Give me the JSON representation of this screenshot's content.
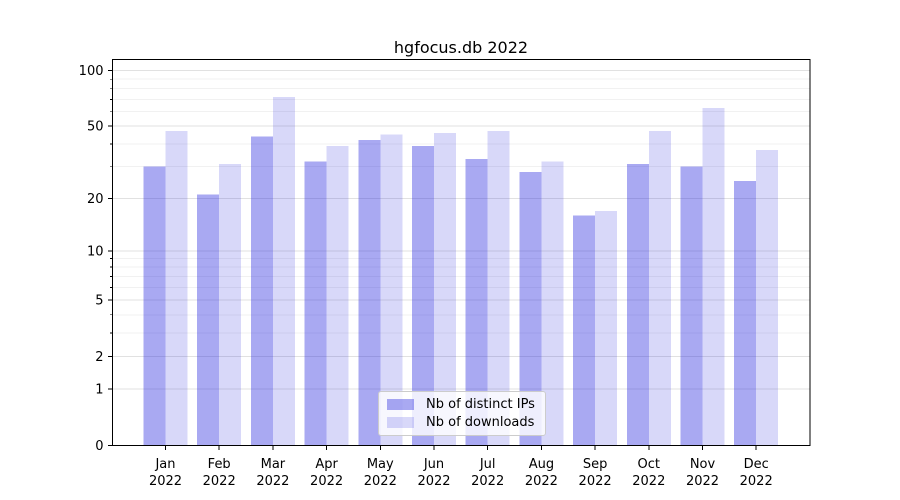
{
  "chart_data": {
    "type": "bar",
    "title": "hgfocus.db 2022",
    "categories": [
      "Jan",
      "Feb",
      "Mar",
      "Apr",
      "May",
      "Jun",
      "Jul",
      "Aug",
      "Sep",
      "Oct",
      "Nov",
      "Dec"
    ],
    "x_year_label": "2022",
    "series": [
      {
        "name": "Nb of distinct IPs",
        "color": "rgba(40,40,222,0.40)",
        "values": [
          30,
          21,
          44,
          32,
          42,
          39,
          33,
          28,
          16,
          31,
          30,
          25
        ]
      },
      {
        "name": "Nb of downloads",
        "color": "rgba(40,40,222,0.18)",
        "values": [
          47,
          31,
          72,
          39,
          45,
          46,
          47,
          32,
          17,
          47,
          63,
          37
        ]
      }
    ],
    "yscale": "log1p",
    "ylim": [
      0,
      115
    ],
    "yticks": [
      0,
      1,
      2,
      5,
      10,
      20,
      50,
      100
    ],
    "yticks_minor": [
      3,
      4,
      6,
      7,
      8,
      9,
      30,
      40,
      60,
      70,
      80,
      90
    ],
    "grid": true,
    "legend_position": "lower center",
    "colors": {
      "grid_major": "#e1e1e1",
      "grid_minor": "#f1f1f1",
      "axis": "#000000",
      "tick_label": "#000000",
      "legend_border": "#cccccc"
    }
  }
}
